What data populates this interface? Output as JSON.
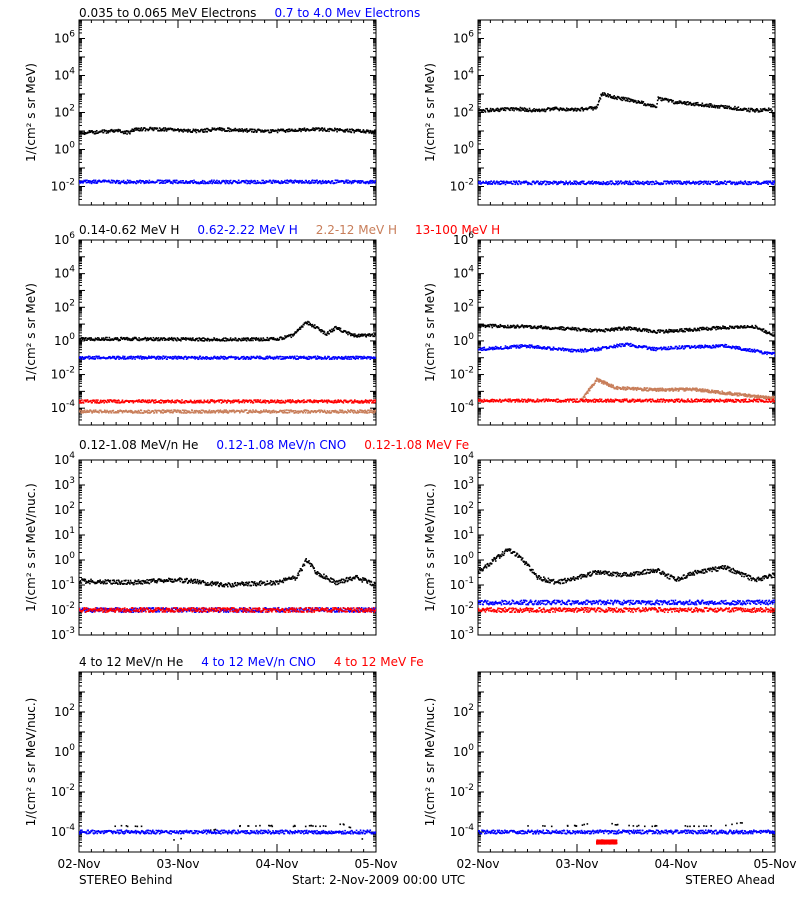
{
  "colors": {
    "black": "#000000",
    "blue": "#0000ff",
    "tan": "#c87e5a",
    "red": "#ff0000"
  },
  "chart_data": [
    {
      "type": "scatter",
      "name": "electrons-behind",
      "ylabel": "1/(cm² s sr MeV)",
      "yscale": "log",
      "ylim": [
        0.001,
        10000000
      ],
      "yticks": [
        [
          "10^-2",
          -2
        ],
        [
          "10^0",
          0
        ],
        [
          "10^2",
          2
        ],
        [
          "10^4",
          4
        ],
        [
          "10^6",
          6
        ]
      ],
      "series": [
        {
          "name": "0.035 to 0.065 MeV Electrons",
          "color": "#000000",
          "points": [
            [
              0,
              0.9
            ],
            [
              0.2,
              0.95
            ],
            [
              0.4,
              1.0
            ],
            [
              0.5,
              0.9
            ],
            [
              0.55,
              1.05
            ],
            [
              0.6,
              1.1
            ],
            [
              0.8,
              1.1
            ],
            [
              1.0,
              1.05
            ],
            [
              1.2,
              1.0
            ],
            [
              1.4,
              1.1
            ],
            [
              1.6,
              1.05
            ],
            [
              1.8,
              1.0
            ],
            [
              2.0,
              1.0
            ],
            [
              2.2,
              1.05
            ],
            [
              2.4,
              1.1
            ],
            [
              2.6,
              1.05
            ],
            [
              2.8,
              1.0
            ],
            [
              3.0,
              0.95
            ]
          ]
        },
        {
          "name": "0.7 to 4.0 Mev Electrons",
          "color": "#0000ff",
          "points": [
            [
              0,
              -1.75
            ],
            [
              1,
              -1.75
            ],
            [
              2,
              -1.75
            ],
            [
              3,
              -1.75
            ]
          ]
        }
      ]
    },
    {
      "type": "scatter",
      "name": "electrons-ahead",
      "ylabel": "1/(cm² s sr MeV)",
      "yscale": "log",
      "ylim": [
        0.001,
        10000000
      ],
      "yticks": [
        [
          "10^-2",
          -2
        ],
        [
          "10^0",
          0
        ],
        [
          "10^2",
          2
        ],
        [
          "10^4",
          4
        ],
        [
          "10^6",
          6
        ]
      ],
      "series": [
        {
          "name": "0.035 to 0.065 MeV Electrons",
          "color": "#000000",
          "points": [
            [
              0,
              2.1
            ],
            [
              0.2,
              2.15
            ],
            [
              0.4,
              2.2
            ],
            [
              0.6,
              2.1
            ],
            [
              0.8,
              2.2
            ],
            [
              1.0,
              2.15
            ],
            [
              1.2,
              2.25
            ],
            [
              1.25,
              3.0
            ],
            [
              1.4,
              2.8
            ],
            [
              1.6,
              2.6
            ],
            [
              1.8,
              2.3
            ],
            [
              1.82,
              2.75
            ],
            [
              2.0,
              2.55
            ],
            [
              2.4,
              2.35
            ],
            [
              2.8,
              2.1
            ],
            [
              2.95,
              2.2
            ],
            [
              3.0,
              1.8
            ]
          ]
        },
        {
          "name": "0.7 to 4.0 Mev Electrons",
          "color": "#0000ff",
          "points": [
            [
              0,
              -1.8
            ],
            [
              1,
              -1.8
            ],
            [
              2,
              -1.8
            ],
            [
              3,
              -1.8
            ]
          ]
        }
      ]
    },
    {
      "type": "scatter",
      "name": "protons-behind",
      "ylabel": "1/(cm² s sr MeV)",
      "yscale": "log",
      "ylim": [
        1e-05,
        1000000
      ],
      "yticks": [
        [
          "10^-4",
          -4
        ],
        [
          "10^-2",
          -2
        ],
        [
          "10^0",
          0
        ],
        [
          "10^2",
          2
        ],
        [
          "10^4",
          4
        ],
        [
          "10^6",
          6
        ]
      ],
      "series": [
        {
          "name": "0.14-0.62 MeV H",
          "color": "#000000",
          "points": [
            [
              0,
              0.1
            ],
            [
              0.5,
              0.12
            ],
            [
              1.0,
              0.1
            ],
            [
              1.5,
              0.08
            ],
            [
              1.8,
              0.1
            ],
            [
              2.0,
              0.1
            ],
            [
              2.15,
              0.3
            ],
            [
              2.3,
              1.1
            ],
            [
              2.4,
              0.8
            ],
            [
              2.5,
              0.4
            ],
            [
              2.6,
              0.8
            ],
            [
              2.7,
              0.5
            ],
            [
              2.8,
              0.3
            ],
            [
              3.0,
              0.35
            ]
          ]
        },
        {
          "name": "0.62-2.22 MeV H",
          "color": "#0000ff",
          "points": [
            [
              0,
              -1.0
            ],
            [
              1,
              -1.0
            ],
            [
              2,
              -1.0
            ],
            [
              3,
              -1.0
            ]
          ]
        },
        {
          "name": "2.2-12 MeV H",
          "color": "#c87e5a",
          "points": [
            [
              0,
              -4.2
            ],
            [
              1,
              -4.2
            ],
            [
              2,
              -4.2
            ],
            [
              3,
              -4.2
            ]
          ]
        },
        {
          "name": "13-100 MeV H",
          "color": "#ff0000",
          "points": [
            [
              0,
              -3.6
            ],
            [
              1,
              -3.6
            ],
            [
              2,
              -3.6
            ],
            [
              3,
              -3.6
            ]
          ]
        }
      ]
    },
    {
      "type": "scatter",
      "name": "protons-ahead",
      "ylabel": "1/(cm² s sr MeV)",
      "yscale": "log",
      "ylim": [
        1e-05,
        1000000
      ],
      "yticks": [
        [
          "10^-4",
          -4
        ],
        [
          "10^-2",
          -2
        ],
        [
          "10^0",
          0
        ],
        [
          "10^2",
          2
        ],
        [
          "10^4",
          4
        ],
        [
          "10^6",
          6
        ]
      ],
      "series": [
        {
          "name": "0.14-0.62 MeV H",
          "color": "#000000",
          "points": [
            [
              0,
              0.9
            ],
            [
              0.5,
              0.85
            ],
            [
              1.0,
              0.7
            ],
            [
              1.2,
              0.6
            ],
            [
              1.5,
              0.75
            ],
            [
              1.8,
              0.55
            ],
            [
              2.0,
              0.6
            ],
            [
              2.5,
              0.8
            ],
            [
              2.8,
              0.85
            ],
            [
              3.0,
              0.3
            ]
          ]
        },
        {
          "name": "0.62-2.22 MeV H",
          "color": "#0000ff",
          "points": [
            [
              0,
              -0.5
            ],
            [
              0.5,
              -0.3
            ],
            [
              1.0,
              -0.6
            ],
            [
              1.2,
              -0.5
            ],
            [
              1.5,
              -0.2
            ],
            [
              1.8,
              -0.5
            ],
            [
              2.0,
              -0.4
            ],
            [
              2.5,
              -0.3
            ],
            [
              2.8,
              -0.6
            ],
            [
              3.0,
              -0.8
            ]
          ]
        },
        {
          "name": "2.2-12 MeV H",
          "color": "#c87e5a",
          "points": [
            [
              1.05,
              -3.5
            ],
            [
              1.2,
              -2.3
            ],
            [
              1.4,
              -2.8
            ],
            [
              1.8,
              -2.9
            ],
            [
              2.2,
              -2.9
            ],
            [
              2.5,
              -3.1
            ],
            [
              2.8,
              -3.3
            ],
            [
              3.0,
              -3.4
            ]
          ]
        },
        {
          "name": "13-100 MeV H",
          "color": "#ff0000",
          "points": [
            [
              0,
              -3.55
            ],
            [
              1,
              -3.55
            ],
            [
              2,
              -3.55
            ],
            [
              3,
              -3.55
            ]
          ]
        }
      ]
    },
    {
      "type": "scatter",
      "name": "heavy-low-behind",
      "ylabel": "1/(cm² s sr MeV/nuc.)",
      "yscale": "log",
      "ylim": [
        0.001,
        10000
      ],
      "yticks": [
        [
          "10^-3",
          -3
        ],
        [
          "10^-2",
          -2
        ],
        [
          "10^-1",
          -1
        ],
        [
          "10^0",
          0
        ],
        [
          "10^1",
          1
        ],
        [
          "10^2",
          2
        ],
        [
          "10^3",
          3
        ],
        [
          "10^4",
          4
        ]
      ],
      "series": [
        {
          "name": "0.12-1.08 MeV/n He",
          "color": "#000000",
          "points": [
            [
              0,
              -0.85
            ],
            [
              0.5,
              -0.9
            ],
            [
              1.0,
              -0.8
            ],
            [
              1.5,
              -1.0
            ],
            [
              2.0,
              -0.9
            ],
            [
              2.2,
              -0.7
            ],
            [
              2.3,
              0.0
            ],
            [
              2.4,
              -0.5
            ],
            [
              2.6,
              -0.9
            ],
            [
              2.8,
              -0.7
            ],
            [
              3.0,
              -1.0
            ]
          ]
        },
        {
          "name": "0.12-1.08 MeV/n CNO",
          "color": "#0000ff",
          "points": [
            [
              0,
              -2.0
            ],
            [
              1,
              -2.0
            ],
            [
              2,
              -2.0
            ],
            [
              3,
              -2.0
            ]
          ]
        },
        {
          "name": "0.12-1.08 MeV Fe",
          "color": "#ff0000",
          "points": [
            [
              0,
              -2.0
            ],
            [
              1,
              -2.0
            ],
            [
              2,
              -2.0
            ],
            [
              3,
              -2.0
            ]
          ]
        }
      ]
    },
    {
      "type": "scatter",
      "name": "heavy-low-ahead",
      "ylabel": "1/(cm² s sr MeV/nuc.)",
      "yscale": "log",
      "ylim": [
        0.001,
        10000
      ],
      "yticks": [
        [
          "10^-3",
          -3
        ],
        [
          "10^-2",
          -2
        ],
        [
          "10^-1",
          -1
        ],
        [
          "10^0",
          0
        ],
        [
          "10^1",
          1
        ],
        [
          "10^2",
          2
        ],
        [
          "10^3",
          3
        ],
        [
          "10^4",
          4
        ]
      ],
      "series": [
        {
          "name": "0.12-1.08 MeV/n He",
          "color": "#000000",
          "points": [
            [
              0,
              -0.5
            ],
            [
              0.2,
              0.1
            ],
            [
              0.3,
              0.4
            ],
            [
              0.4,
              0.2
            ],
            [
              0.5,
              -0.2
            ],
            [
              0.6,
              -0.7
            ],
            [
              0.8,
              -0.9
            ],
            [
              1.0,
              -0.7
            ],
            [
              1.2,
              -0.5
            ],
            [
              1.5,
              -0.6
            ],
            [
              1.8,
              -0.4
            ],
            [
              2.0,
              -0.8
            ],
            [
              2.2,
              -0.5
            ],
            [
              2.5,
              -0.3
            ],
            [
              2.8,
              -0.8
            ],
            [
              3.0,
              -0.6
            ]
          ]
        },
        {
          "name": "0.12-1.08 MeV/n CNO",
          "color": "#0000ff",
          "points": [
            [
              0,
              -1.7
            ],
            [
              1,
              -1.7
            ],
            [
              2,
              -1.7
            ],
            [
              3,
              -1.7
            ]
          ]
        },
        {
          "name": "0.12-1.08 MeV Fe",
          "color": "#ff0000",
          "points": [
            [
              0,
              -2.0
            ],
            [
              1,
              -2.0
            ],
            [
              2,
              -2.0
            ],
            [
              3,
              -2.0
            ]
          ]
        }
      ]
    },
    {
      "type": "scatter",
      "name": "heavy-high-behind",
      "ylabel": "1/(cm² s sr MeV/nuc.)",
      "yscale": "log",
      "ylim": [
        1e-05,
        10000
      ],
      "yticks": [
        [
          "10^-4",
          -4
        ],
        [
          "10^-2",
          -2
        ],
        [
          "10^0",
          0
        ],
        [
          "10^2",
          2
        ]
      ],
      "series": [
        {
          "name": "4 to 12 MeV/n He",
          "color": "#000000",
          "points": [
            [
              0.3,
              -3.7
            ],
            [
              0.7,
              -3.7
            ],
            [
              0.9,
              -4.5
            ],
            [
              1.5,
              -3.7
            ],
            [
              2.0,
              -3.7
            ],
            [
              2.5,
              -3.7
            ],
            [
              2.7,
              -3.6
            ],
            [
              2.9,
              -4.5
            ]
          ]
        },
        {
          "name": "4 to 12 MeV/n CNO",
          "color": "#0000ff",
          "points": [
            [
              0,
              -4.0
            ],
            [
              1,
              -4.0
            ],
            [
              2,
              -4.0
            ],
            [
              3,
              -4.0
            ]
          ]
        },
        {
          "name": "4 to 12 MeV Fe",
          "color": "#ff0000",
          "points": []
        }
      ]
    },
    {
      "type": "scatter",
      "name": "heavy-high-ahead",
      "ylabel": "1/(cm² s sr MeV/nuc.)",
      "yscale": "log",
      "ylim": [
        1e-05,
        10000
      ],
      "yticks": [
        [
          "10^-4",
          -4
        ],
        [
          "10^-2",
          -2
        ],
        [
          "10^0",
          0
        ],
        [
          "10^2",
          2
        ]
      ],
      "series": [
        {
          "name": "4 to 12 MeV/n He",
          "color": "#000000",
          "points": [
            [
              0.5,
              -3.7
            ],
            [
              1.0,
              -3.7
            ],
            [
              1.2,
              -3.5
            ],
            [
              1.5,
              -3.7
            ],
            [
              2.0,
              -3.7
            ],
            [
              2.5,
              -3.7
            ],
            [
              2.7,
              -3.5
            ]
          ]
        },
        {
          "name": "4 to 12 MeV/n CNO",
          "color": "#0000ff",
          "points": [
            [
              0,
              -4.0
            ],
            [
              1,
              -4.0
            ],
            [
              2,
              -4.0
            ],
            [
              3,
              -4.0
            ]
          ]
        },
        {
          "name": "4 to 12 MeV Fe",
          "color": "#ff0000",
          "points": [
            [
              1.2,
              -4.5
            ],
            [
              1.4,
              -4.5
            ]
          ]
        }
      ]
    }
  ],
  "x_axis": {
    "range_days": [
      0,
      3
    ],
    "tick_labels": [
      "02-Nov",
      "03-Nov",
      "04-Nov",
      "05-Nov"
    ]
  },
  "footer": {
    "left": "STEREO Behind",
    "center": "Start:  2-Nov-2009 00:00 UTC",
    "right": "STEREO Ahead"
  },
  "titles": {
    "row1": [
      {
        "text": "0.035 to 0.065 MeV Electrons",
        "color": "#000000"
      },
      {
        "text": "0.7 to 4.0 Mev Electrons",
        "color": "#0000ff"
      }
    ],
    "row2": [
      {
        "text": "0.14-0.62 MeV H",
        "color": "#000000"
      },
      {
        "text": "0.62-2.22 MeV H",
        "color": "#0000ff"
      },
      {
        "text": "2.2-12 MeV H",
        "color": "#c87e5a"
      },
      {
        "text": "13-100 MeV H",
        "color": "#ff0000"
      }
    ],
    "row3": [
      {
        "text": "0.12-1.08 MeV/n He",
        "color": "#000000"
      },
      {
        "text": "0.12-1.08 MeV/n CNO",
        "color": "#0000ff"
      },
      {
        "text": "0.12-1.08 MeV Fe",
        "color": "#ff0000"
      }
    ],
    "row4": [
      {
        "text": "4 to 12 MeV/n He",
        "color": "#000000"
      },
      {
        "text": "4 to 12 MeV/n CNO",
        "color": "#0000ff"
      },
      {
        "text": "4 to 12 MeV Fe",
        "color": "#ff0000"
      }
    ]
  }
}
